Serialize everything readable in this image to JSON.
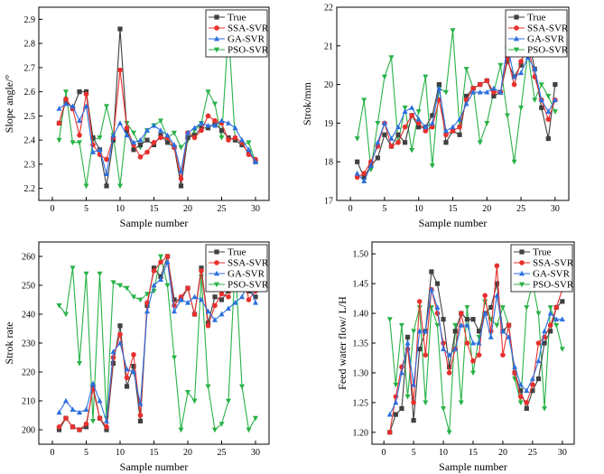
{
  "colors": {
    "true": "#404040",
    "ssa": "#e8302d",
    "ga": "#2b6fe0",
    "pso": "#28b247"
  },
  "chart_data": [
    {
      "type": "line",
      "xlabel": "Sample number",
      "ylabel": "Slope angle/°",
      "xlim": [
        -2,
        32
      ],
      "ylim": [
        2.15,
        2.95
      ],
      "xticks": [
        0,
        5,
        10,
        15,
        20,
        25,
        30
      ],
      "yticks": [
        2.2,
        2.3,
        2.4,
        2.5,
        2.6,
        2.7,
        2.8,
        2.9
      ],
      "ytick_labels": [
        "2.2",
        "2.3",
        "2.4",
        "2.5",
        "2.6",
        "2.7",
        "2.8",
        "2.9"
      ],
      "legend": "top-right",
      "series": [
        {
          "name": "True",
          "marker": "square",
          "color_key": "true",
          "values": [
            2.47,
            2.56,
            2.53,
            2.6,
            2.6,
            2.41,
            2.36,
            2.21,
            2.4,
            2.86,
            2.44,
            2.36,
            2.38,
            2.4,
            2.38,
            2.42,
            2.39,
            2.37,
            2.21,
            2.41,
            2.42,
            2.45,
            2.45,
            2.47,
            2.44,
            2.41,
            2.4,
            2.38,
            2.35,
            2.31
          ]
        },
        {
          "name": "SSA-SVR",
          "marker": "circle",
          "color_key": "ssa",
          "values": [
            2.47,
            2.57,
            2.53,
            2.42,
            2.59,
            2.38,
            2.34,
            2.32,
            2.41,
            2.69,
            2.45,
            2.38,
            2.33,
            2.35,
            2.39,
            2.41,
            2.41,
            2.37,
            2.24,
            2.43,
            2.41,
            2.44,
            2.5,
            2.48,
            2.47,
            2.4,
            2.41,
            2.39,
            2.34,
            2.32
          ]
        },
        {
          "name": "GA-SVR",
          "marker": "triangle-up",
          "color_key": "ga",
          "values": [
            2.53,
            2.55,
            2.54,
            2.48,
            2.54,
            2.35,
            2.36,
            2.26,
            2.42,
            2.47,
            2.42,
            2.39,
            2.4,
            2.44,
            2.46,
            2.44,
            2.42,
            2.38,
            2.27,
            2.43,
            2.45,
            2.47,
            2.46,
            2.46,
            2.48,
            2.47,
            2.45,
            2.4,
            2.36,
            2.31
          ]
        },
        {
          "name": "PSO-SVR",
          "marker": "triangle-down",
          "color_key": "pso",
          "values": [
            2.4,
            2.6,
            2.39,
            2.39,
            2.21,
            2.4,
            2.41,
            2.54,
            2.42,
            2.21,
            2.47,
            2.43,
            2.37,
            2.44,
            2.46,
            2.48,
            2.41,
            2.43,
            2.37,
            2.4,
            2.44,
            2.47,
            2.6,
            2.55,
            2.41,
            2.86,
            2.4,
            2.38,
            2.39,
            2.31
          ]
        }
      ]
    },
    {
      "type": "line",
      "xlabel": "Sample number",
      "ylabel": "Strok/mm",
      "xlim": [
        -2,
        32
      ],
      "ylim": [
        17,
        22
      ],
      "xticks": [
        0,
        5,
        10,
        15,
        20,
        25,
        30
      ],
      "yticks": [
        17,
        18,
        19,
        20,
        21,
        22
      ],
      "ytick_labels": [
        "17",
        "18",
        "19",
        "20",
        "21",
        "22"
      ],
      "legend": "top-right",
      "series": [
        {
          "name": "True",
          "marker": "square",
          "color_key": "true",
          "values": [
            18.0,
            17.6,
            17.9,
            18.1,
            18.7,
            18.4,
            18.7,
            18.5,
            19.2,
            18.9,
            18.9,
            19.2,
            20.0,
            18.5,
            18.8,
            18.7,
            19.7,
            19.9,
            20.0,
            20.1,
            19.7,
            19.8,
            20.6,
            20.2,
            20.5,
            21.3,
            20.4,
            19.4,
            18.6,
            20.0
          ]
        },
        {
          "name": "SSA-SVR",
          "marker": "circle",
          "color_key": "ssa",
          "values": [
            17.6,
            17.7,
            18.0,
            18.4,
            19.0,
            18.4,
            18.5,
            18.9,
            19.2,
            19.0,
            18.8,
            18.9,
            19.6,
            18.7,
            18.8,
            18.9,
            19.6,
            19.9,
            20.0,
            20.1,
            19.8,
            19.8,
            20.7,
            20.0,
            20.6,
            21.0,
            20.2,
            19.6,
            19.1,
            19.6
          ]
        },
        {
          "name": "GA-SVR",
          "marker": "triangle-up",
          "color_key": "ga",
          "values": [
            17.7,
            17.5,
            17.9,
            18.5,
            19.0,
            18.6,
            18.9,
            19.3,
            19.4,
            19.1,
            18.9,
            19.0,
            19.9,
            18.8,
            18.9,
            19.1,
            19.5,
            19.8,
            19.8,
            19.8,
            19.9,
            19.8,
            21.0,
            20.2,
            20.3,
            20.7,
            20.4,
            19.6,
            19.3,
            19.6
          ]
        },
        {
          "name": "PSO-SVR",
          "marker": "triangle-down",
          "color_key": "pso",
          "values": [
            18.6,
            19.6,
            17.8,
            19.0,
            20.2,
            20.7,
            18.5,
            19.4,
            18.3,
            19.3,
            20.2,
            17.9,
            19.9,
            19.8,
            21.4,
            18.9,
            20.4,
            19.9,
            18.5,
            19.0,
            19.8,
            20.5,
            19.2,
            18.0,
            19.4,
            20.8,
            19.6,
            20.0,
            19.7,
            19.3
          ]
        }
      ]
    },
    {
      "type": "line",
      "xlabel": "Sample number",
      "ylabel": "Strok rate",
      "xlim": [
        -2,
        32
      ],
      "ylim": [
        195,
        265
      ],
      "xticks": [
        0,
        5,
        10,
        15,
        20,
        25,
        30
      ],
      "yticks": [
        200,
        210,
        220,
        230,
        240,
        250,
        260
      ],
      "ytick_labels": [
        "200",
        "210",
        "220",
        "230",
        "240",
        "250",
        "260"
      ],
      "legend": "top-right",
      "series": [
        {
          "name": "True",
          "marker": "square",
          "color_key": "true",
          "values": [
            200,
            204,
            201,
            200,
            201,
            215,
            204,
            200,
            223,
            236,
            215,
            222,
            203,
            243,
            256,
            253,
            260,
            245,
            245,
            249,
            240,
            256,
            237,
            246,
            245,
            248,
            253,
            258,
            248,
            246
          ]
        },
        {
          "name": "SSA-SVR",
          "marker": "circle",
          "color_key": "ssa",
          "values": [
            201,
            204,
            201,
            200,
            202,
            214,
            204,
            201,
            225,
            233,
            218,
            226,
            205,
            244,
            255,
            258,
            260,
            243,
            246,
            249,
            240,
            255,
            236,
            243,
            247,
            246,
            253,
            258,
            245,
            248
          ]
        },
        {
          "name": "GA-SVR",
          "marker": "triangle-up",
          "color_key": "ga",
          "values": [
            206,
            210,
            207,
            206,
            207,
            216,
            210,
            203,
            227,
            230,
            221,
            220,
            209,
            241,
            250,
            252,
            258,
            241,
            245,
            244,
            246,
            245,
            241,
            238,
            240,
            242,
            244,
            246,
            251,
            244
          ]
        },
        {
          "name": "PSO-SVR",
          "marker": "triangle-down",
          "color_key": "pso",
          "values": [
            243,
            240,
            256,
            223,
            254,
            203,
            254,
            204,
            251,
            250,
            249,
            246,
            245,
            247,
            248,
            260,
            250,
            225,
            200,
            213,
            210,
            253,
            215,
            200,
            202,
            210,
            258,
            215,
            200,
            204
          ]
        }
      ]
    },
    {
      "type": "line",
      "xlabel": "Sample number",
      "ylabel": "Feed water flow/ L/H",
      "xlim": [
        -2,
        32
      ],
      "ylim": [
        1.18,
        1.52
      ],
      "xticks": [
        0,
        5,
        10,
        15,
        20,
        25,
        30
      ],
      "yticks": [
        1.2,
        1.25,
        1.3,
        1.35,
        1.4,
        1.45,
        1.5
      ],
      "ytick_labels": [
        "1.20",
        "1.25",
        "1.30",
        "1.35",
        "1.40",
        "1.45",
        "1.50"
      ],
      "legend": "top-right",
      "series": [
        {
          "name": "True",
          "marker": "square",
          "color_key": "true",
          "values": [
            1.2,
            1.23,
            1.24,
            1.36,
            1.22,
            1.34,
            1.37,
            1.47,
            1.45,
            1.39,
            1.31,
            1.37,
            1.4,
            1.39,
            1.39,
            1.37,
            1.4,
            1.41,
            1.45,
            1.37,
            1.38,
            1.3,
            1.27,
            1.24,
            1.27,
            1.29,
            1.35,
            1.37,
            1.41,
            1.42
          ]
        },
        {
          "name": "SSA-SVR",
          "marker": "circle",
          "color_key": "ssa",
          "values": [
            1.2,
            1.26,
            1.31,
            1.34,
            1.25,
            1.42,
            1.33,
            1.44,
            1.4,
            1.35,
            1.3,
            1.34,
            1.4,
            1.35,
            1.32,
            1.33,
            1.43,
            1.37,
            1.48,
            1.33,
            1.38,
            1.3,
            1.26,
            1.25,
            1.28,
            1.35,
            1.36,
            1.38,
            1.41,
            1.44
          ]
        },
        {
          "name": "GA-SVR",
          "marker": "triangle-up",
          "color_key": "ga",
          "values": [
            1.23,
            1.25,
            1.3,
            1.35,
            1.28,
            1.37,
            1.37,
            1.44,
            1.41,
            1.34,
            1.33,
            1.34,
            1.38,
            1.38,
            1.35,
            1.35,
            1.4,
            1.36,
            1.43,
            1.37,
            1.36,
            1.31,
            1.28,
            1.27,
            1.29,
            1.32,
            1.37,
            1.4,
            1.39,
            1.39
          ]
        },
        {
          "name": "PSO-SVR",
          "marker": "triangle-down",
          "color_key": "pso",
          "values": [
            1.39,
            1.28,
            1.38,
            1.26,
            1.37,
            1.41,
            1.25,
            1.41,
            1.38,
            1.24,
            1.2,
            1.38,
            1.25,
            1.41,
            1.3,
            1.36,
            1.42,
            1.39,
            1.38,
            1.41,
            1.38,
            1.29,
            1.25,
            1.41,
            1.45,
            1.4,
            1.24,
            1.41,
            1.38,
            1.34
          ]
        }
      ]
    }
  ]
}
